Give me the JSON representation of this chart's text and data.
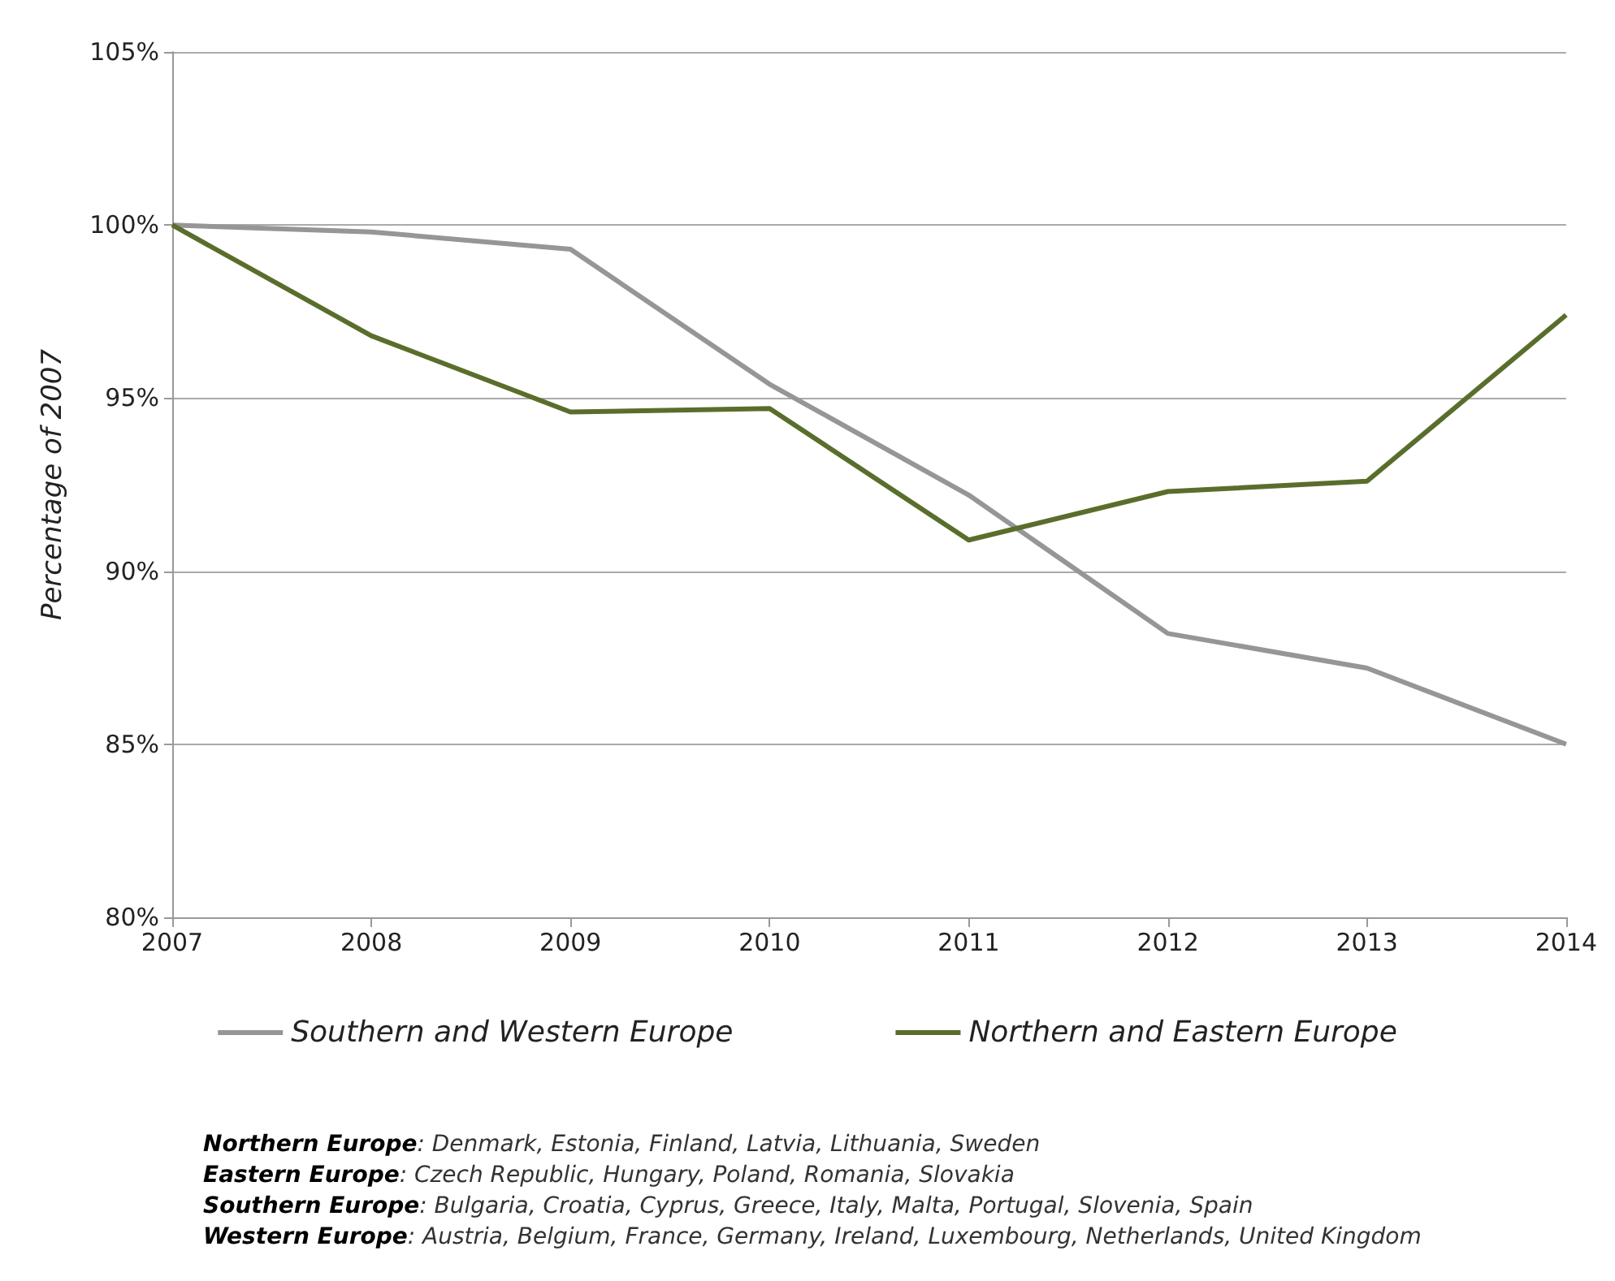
{
  "chart_data": {
    "type": "line",
    "ylabel": "Percentage of 2007",
    "categories": [
      "2007",
      "2008",
      "2009",
      "2010",
      "2011",
      "2012",
      "2013",
      "2014"
    ],
    "series": [
      {
        "name": "Southern and Western Europe",
        "color": "#969696",
        "values": [
          100,
          99.8,
          99.3,
          95.4,
          92.2,
          88.2,
          87.2,
          85.0
        ]
      },
      {
        "name": "Northern and Eastern Europe",
        "color": "#5a6e2c",
        "values": [
          100,
          96.8,
          94.6,
          94.7,
          90.9,
          92.3,
          92.6,
          97.4
        ]
      }
    ],
    "ylim": [
      80,
      105
    ],
    "yticks": [
      {
        "value": 80,
        "label": "80%"
      },
      {
        "value": 85,
        "label": "85%"
      },
      {
        "value": 90,
        "label": "90%"
      },
      {
        "value": 95,
        "label": "95%"
      },
      {
        "value": 100,
        "label": "100%"
      },
      {
        "value": 105,
        "label": "105%"
      }
    ],
    "grid": "y",
    "legend": "bottom",
    "marker": "none",
    "line_style": "solid",
    "annotations": [
      "Northern Europe: Denmark, Estonia, Finland, Latvia, Lithuania, Sweden",
      "Eastern Europe: Czech Republic, Hungary, Poland, Romania, Slovakia",
      "Southern Europe: Bulgaria, Croatia, Cyprus, Greece, Italy, Malta, Portugal, Slovenia, Spain",
      "Western Europe: Austria, Belgium, France, Germany, Ireland, Luxembourg, Netherlands, United Kingdom"
    ]
  }
}
